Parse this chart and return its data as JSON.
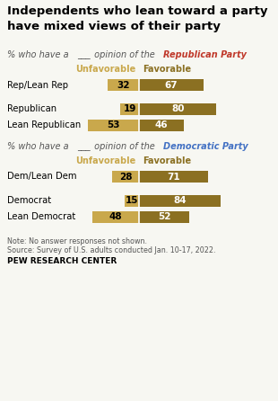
{
  "title": "Independents who lean toward a party\nhave mixed views of their party",
  "rep_subtitle_colored": "Republican Party",
  "dem_subtitle_colored": "Democratic Party",
  "rep_categories": [
    "Rep/Lean Rep",
    "Republican",
    "Lean Republican"
  ],
  "rep_unfavorable": [
    32,
    19,
    53
  ],
  "rep_favorable": [
    67,
    80,
    46
  ],
  "dem_categories": [
    "Dem/Lean Dem",
    "Democrat",
    "Lean Democrat"
  ],
  "dem_unfavorable": [
    28,
    15,
    48
  ],
  "dem_favorable": [
    71,
    84,
    52
  ],
  "color_unfavorable": "#C9A84C",
  "color_favorable": "#8B7022",
  "color_rep_party": "#C0392B",
  "color_dem_party": "#4472C4",
  "note": "Note: No answer responses not shown.",
  "source": "Source: Survey of U.S. adults conducted Jan. 10-17, 2022.",
  "pew": "PEW RESEARCH CENTER",
  "bg_color": "#F7F7F2",
  "legend_unfav_label": "Unfavorable",
  "legend_fav_label": "Favorable",
  "subtitle_plain": "% who have a ——— opinion of the ",
  "subtitle_plain2": "% who have a ___ opinion of the "
}
